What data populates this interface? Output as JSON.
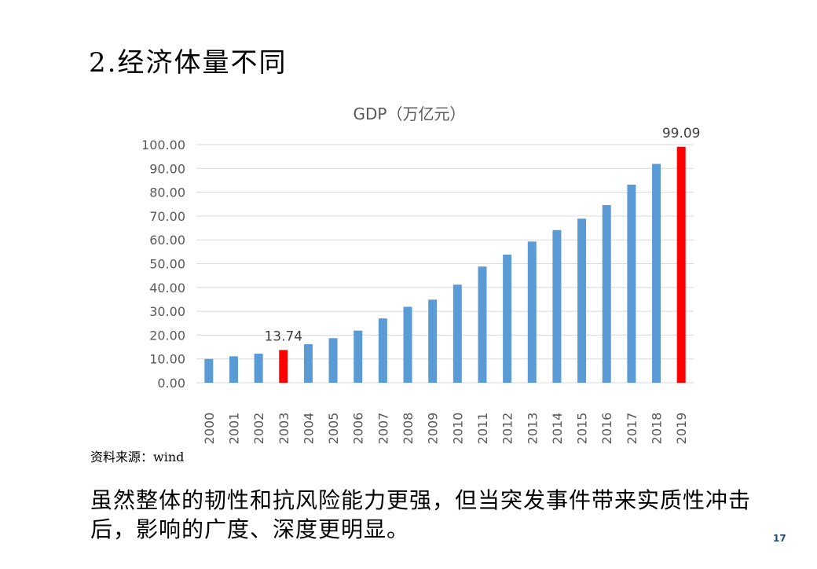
{
  "slide": {
    "title": "2.经济体量不同",
    "source": "资料来源：wind",
    "body": "虽然整体的韧性和抗风险能力更强，但当突发事件带来实质性冲击后，影响的广度、深度更明显。",
    "page_number": "17"
  },
  "colors": {
    "default_bar": "#5b9bd5",
    "highlight_bar": "#ff0000",
    "grid": "#d9d9d9",
    "text": "#595959"
  },
  "chart_data": {
    "type": "bar",
    "title": "GDP（万亿元）",
    "xlabel": "",
    "ylabel": "",
    "ylim": [
      0,
      100
    ],
    "yticks": [
      "0.00",
      "10.00",
      "20.00",
      "30.00",
      "40.00",
      "50.00",
      "60.00",
      "70.00",
      "80.00",
      "90.00",
      "100.00"
    ],
    "categories": [
      "2000",
      "2001",
      "2002",
      "2003",
      "2004",
      "2005",
      "2006",
      "2007",
      "2008",
      "2009",
      "2010",
      "2011",
      "2012",
      "2013",
      "2014",
      "2015",
      "2016",
      "2017",
      "2018",
      "2019"
    ],
    "values": [
      10.0,
      11.1,
      12.2,
      13.74,
      16.2,
      18.7,
      21.9,
      27.0,
      31.9,
      34.9,
      41.2,
      48.8,
      53.8,
      59.3,
      64.1,
      68.9,
      74.6,
      83.2,
      91.9,
      99.09
    ],
    "highlight": [
      "2003",
      "2019"
    ],
    "data_labels": [
      {
        "category": "2003",
        "text": "13.74"
      },
      {
        "category": "2019",
        "text": "99.09"
      }
    ],
    "grid": true,
    "legend": "none"
  }
}
